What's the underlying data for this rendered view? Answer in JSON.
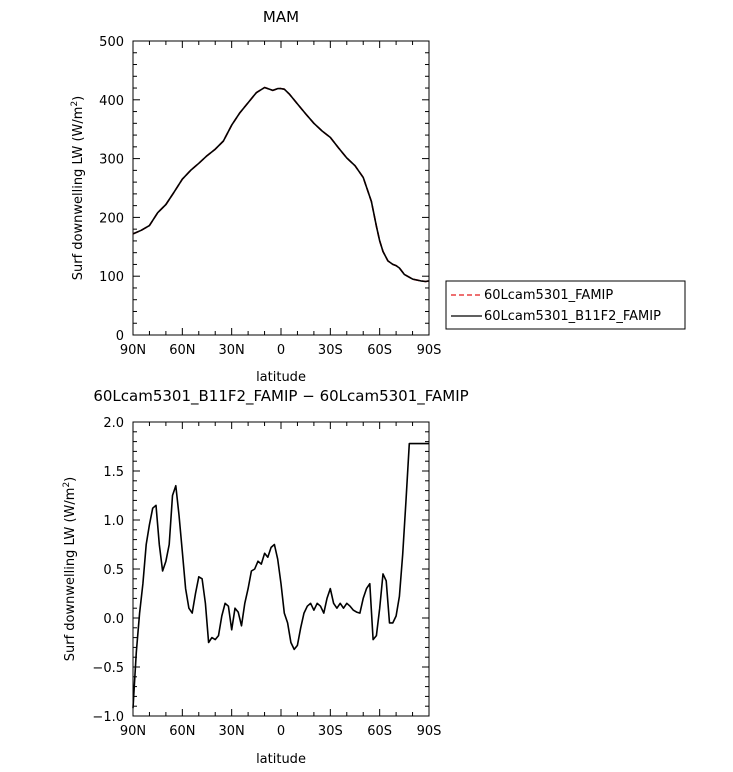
{
  "chart_data": [
    {
      "type": "line",
      "title": "MAM",
      "xlabel": "latitude",
      "ylabel": "Surf downwelling LW (W/m²)",
      "ylabel_text": "Surf downwelling LW (W/m",
      "ylabel_sup": "2",
      "ylabel_close": ")",
      "xlim": [
        90,
        -90
      ],
      "ylim": [
        0,
        500
      ],
      "x_ticks": [
        90,
        60,
        30,
        0,
        -30,
        -60,
        -90
      ],
      "x_tick_labels": [
        "90N",
        "60N",
        "30N",
        "0",
        "30S",
        "60S",
        "90S"
      ],
      "y_ticks": [
        0,
        100,
        200,
        300,
        400,
        500
      ],
      "y_tick_labels": [
        "0",
        "100",
        "200",
        "300",
        "400",
        "500"
      ],
      "legend": {
        "placement": "right",
        "entries": [
          {
            "label": "60Lcam5301_FAMIP",
            "color": "#e31a1c",
            "dash": "dashed"
          },
          {
            "label": "60Lcam5301_B11F2_FAMIP",
            "color": "#000000",
            "dash": "solid"
          }
        ]
      },
      "x": [
        90,
        85,
        80,
        75,
        70,
        65,
        60,
        55,
        50,
        45,
        40,
        35,
        30,
        25,
        20,
        15,
        10,
        5,
        2,
        0,
        -2,
        -5,
        -10,
        -15,
        -20,
        -25,
        -30,
        -35,
        -40,
        -45,
        -50,
        -55,
        -58,
        -60,
        -62,
        -65,
        -68,
        -70,
        -72,
        -75,
        -80,
        -85,
        -88,
        -90
      ],
      "series": [
        {
          "name": "60Lcam5301_FAMIP",
          "color": "#e31a1c",
          "dash": "dashed",
          "values": [
            172,
            178,
            186,
            208,
            222,
            243,
            265,
            280,
            292,
            305,
            316,
            330,
            357,
            378,
            395,
            412,
            421,
            416,
            419,
            419,
            418,
            410,
            393,
            376,
            360,
            347,
            336,
            318,
            301,
            288,
            268,
            227,
            185,
            160,
            142,
            126,
            120,
            118,
            114,
            103,
            95,
            92,
            91,
            92
          ]
        },
        {
          "name": "60Lcam5301_B11F2_FAMIP",
          "color": "#000000",
          "dash": "solid",
          "values": [
            172,
            178,
            186,
            208,
            222,
            243,
            265,
            280,
            292,
            305,
            316,
            330,
            357,
            378,
            395,
            412,
            421,
            416,
            419,
            419,
            418,
            410,
            393,
            376,
            360,
            347,
            336,
            318,
            301,
            288,
            268,
            227,
            185,
            160,
            142,
            126,
            120,
            118,
            114,
            103,
            95,
            92,
            91,
            92
          ]
        }
      ]
    },
    {
      "type": "line",
      "title": "60Lcam5301_B11F2_FAMIP − 60Lcam5301_FAMIP",
      "xlabel": "latitude",
      "ylabel": "Surf downwelling LW (W/m²)",
      "ylabel_text": "Surf downwelling LW (W/m",
      "ylabel_sup": "2",
      "ylabel_close": ")",
      "xlim": [
        90,
        -90
      ],
      "ylim": [
        -1.0,
        2.0
      ],
      "x_ticks": [
        90,
        60,
        30,
        0,
        -30,
        -60,
        -90
      ],
      "x_tick_labels": [
        "90N",
        "60N",
        "30N",
        "0",
        "30S",
        "60S",
        "90S"
      ],
      "y_ticks": [
        -1.0,
        -0.5,
        0.0,
        0.5,
        1.0,
        1.5,
        2.0
      ],
      "y_tick_labels": [
        "−1.0",
        "−0.5",
        "0.0",
        "0.5",
        "1.0",
        "1.5",
        "2.0"
      ],
      "x": [
        90,
        88,
        86,
        84,
        82,
        80,
        78,
        76,
        74,
        72,
        70,
        68,
        66,
        64,
        62,
        60,
        58,
        56,
        54,
        52,
        50,
        48,
        46,
        44,
        42,
        40,
        38,
        36,
        34,
        32,
        30,
        28,
        26,
        24,
        22,
        20,
        18,
        16,
        14,
        12,
        10,
        8,
        6,
        4,
        2,
        0,
        -2,
        -4,
        -6,
        -8,
        -10,
        -12,
        -14,
        -16,
        -18,
        -20,
        -22,
        -24,
        -26,
        -28,
        -30,
        -32,
        -34,
        -36,
        -38,
        -40,
        -42,
        -44,
        -46,
        -48,
        -50,
        -52,
        -54,
        -56,
        -58,
        -60,
        -62,
        -64,
        -66,
        -68,
        -70,
        -72,
        -74,
        -76,
        -78,
        -80,
        -82,
        -84,
        -86,
        -88,
        -90
      ],
      "series": [
        {
          "name": "60Lcam5301_B11F2_FAMIP",
          "color": "#000000",
          "dash": "solid",
          "values": [
            -0.92,
            -0.35,
            0.05,
            0.35,
            0.75,
            0.95,
            1.12,
            1.15,
            0.75,
            0.48,
            0.58,
            0.75,
            1.25,
            1.35,
            1.05,
            0.68,
            0.3,
            0.1,
            0.05,
            0.25,
            0.42,
            0.4,
            0.15,
            -0.25,
            -0.2,
            -0.22,
            -0.18,
            0.02,
            0.15,
            0.12,
            -0.12,
            0.1,
            0.06,
            -0.08,
            0.15,
            0.3,
            0.48,
            0.5,
            0.58,
            0.55,
            0.66,
            0.62,
            0.72,
            0.75,
            0.6,
            0.35,
            0.05,
            -0.05,
            -0.25,
            -0.32,
            -0.28,
            -0.1,
            0.05,
            0.12,
            0.15,
            0.08,
            0.15,
            0.12,
            0.05,
            0.2,
            0.3,
            0.15,
            0.1,
            0.15,
            0.1,
            0.15,
            0.12,
            0.08,
            0.06,
            0.05,
            0.2,
            0.3,
            0.35,
            -0.22,
            -0.18,
            0.1,
            0.45,
            0.38,
            -0.05,
            -0.05,
            0.02,
            0.22,
            0.65,
            1.2,
            1.78,
            1.78,
            1.78,
            1.78,
            1.78,
            1.78,
            1.78
          ]
        }
      ]
    }
  ]
}
